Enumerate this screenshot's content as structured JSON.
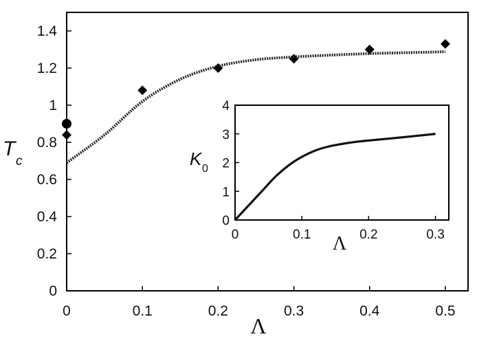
{
  "chart_data": [
    {
      "type": "scatter",
      "xlabel": "Λ",
      "ylabel": "T",
      "ylabel_subscript": "c",
      "xlim": [
        0,
        0.53
      ],
      "ylim": [
        0,
        1.5
      ],
      "x_ticks": [
        "0",
        "0.1",
        "0.2",
        "0.3",
        "0.4",
        "0.5"
      ],
      "y_ticks": [
        "0",
        "0.2",
        "0.4",
        "0.6",
        "0.8",
        "1",
        "1.2",
        "1.4"
      ],
      "series": [
        {
          "marker": "diamond",
          "points": [
            {
              "x": 0,
              "y": 0.84
            },
            {
              "x": 0.1,
              "y": 1.08
            },
            {
              "x": 0.2,
              "y": 1.2
            },
            {
              "x": 0.3,
              "y": 1.25
            },
            {
              "x": 0.4,
              "y": 1.3
            },
            {
              "x": 0.5,
              "y": 1.33
            }
          ]
        },
        {
          "marker": "circle",
          "points": [
            {
              "x": 0,
              "y": 0.9
            }
          ]
        },
        {
          "style": "dotted",
          "points": [
            {
              "x": 0,
              "y": 0.69
            },
            {
              "x": 0.05,
              "y": 0.84
            },
            {
              "x": 0.1,
              "y": 1.02
            },
            {
              "x": 0.15,
              "y": 1.14
            },
            {
              "x": 0.2,
              "y": 1.21
            },
            {
              "x": 0.25,
              "y": 1.245
            },
            {
              "x": 0.3,
              "y": 1.26
            },
            {
              "x": 0.35,
              "y": 1.27
            },
            {
              "x": 0.4,
              "y": 1.278
            },
            {
              "x": 0.45,
              "y": 1.283
            },
            {
              "x": 0.5,
              "y": 1.288
            }
          ]
        }
      ],
      "colors": {
        "markers": "#000000",
        "fit_line": "#222222"
      }
    },
    {
      "type": "line",
      "inset": true,
      "xlabel": "Λ",
      "ylabel": "K",
      "ylabel_subscript": "0",
      "xlim": [
        0,
        0.32
      ],
      "ylim": [
        0,
        4
      ],
      "x_ticks": [
        "0",
        "0.1",
        "0.2",
        "0.3"
      ],
      "y_ticks": [
        "0",
        "1",
        "2",
        "3",
        "4"
      ],
      "series": [
        {
          "points": [
            {
              "x": 0,
              "y": 0
            },
            {
              "x": 0.02,
              "y": 0.5
            },
            {
              "x": 0.04,
              "y": 1.0
            },
            {
              "x": 0.06,
              "y": 1.5
            },
            {
              "x": 0.08,
              "y": 1.9
            },
            {
              "x": 0.1,
              "y": 2.2
            },
            {
              "x": 0.12,
              "y": 2.42
            },
            {
              "x": 0.14,
              "y": 2.56
            },
            {
              "x": 0.16,
              "y": 2.65
            },
            {
              "x": 0.18,
              "y": 2.72
            },
            {
              "x": 0.2,
              "y": 2.77
            },
            {
              "x": 0.25,
              "y": 2.88
            },
            {
              "x": 0.3,
              "y": 3.0
            }
          ]
        }
      ],
      "colors": {
        "line": "#111111"
      }
    }
  ]
}
